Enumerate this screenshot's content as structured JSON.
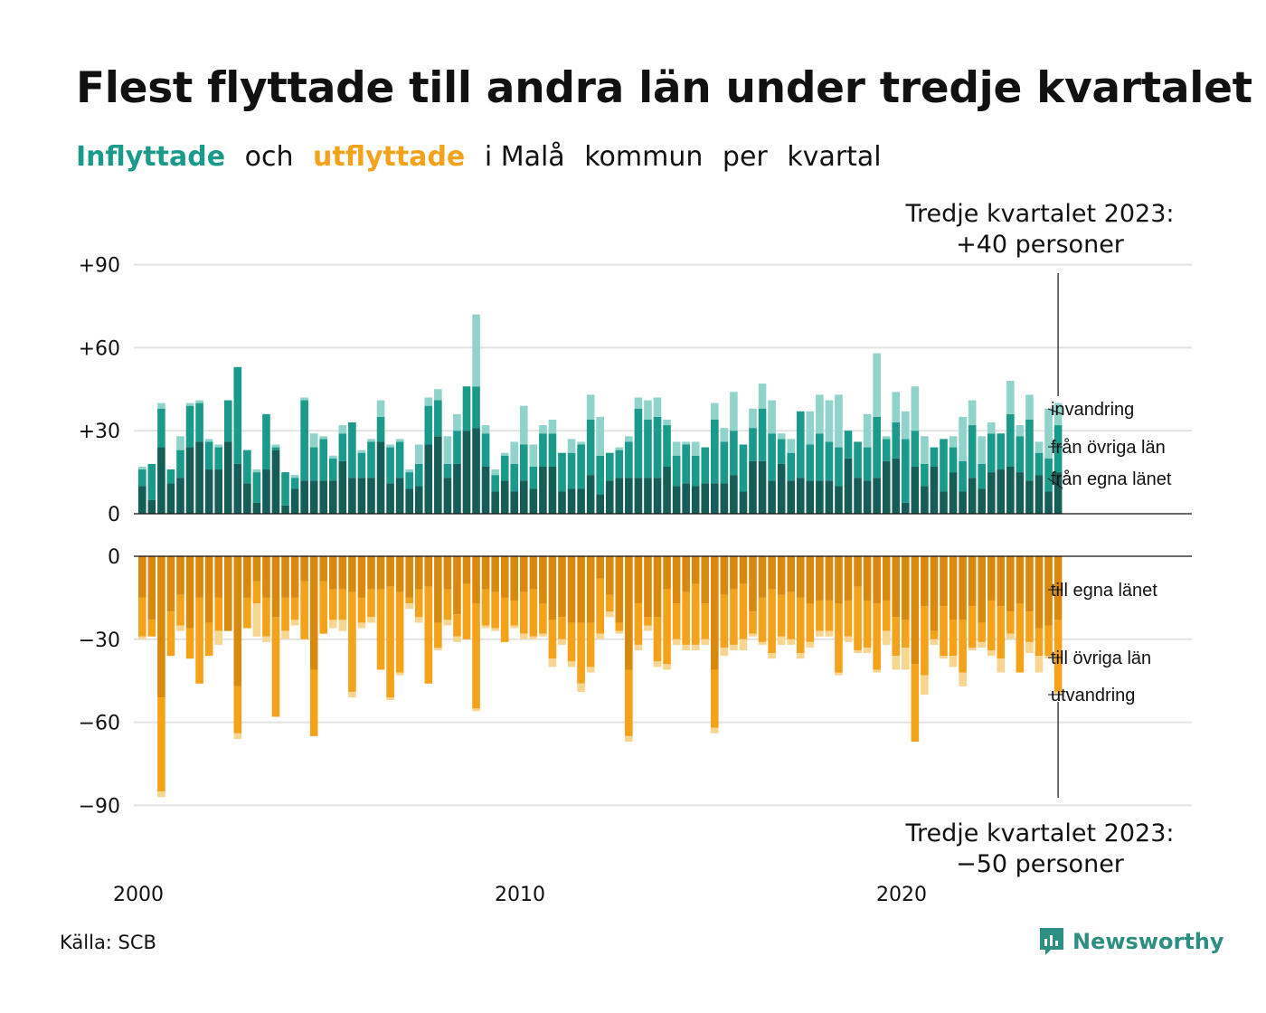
{
  "title": "Flest flyttade till andra län under tredje kvartalet",
  "subtitle": {
    "part1": "Inflyttade",
    "part2": "och",
    "part3": "utflyttade",
    "part4": "i Malå",
    "part5": "kommun",
    "part6": "per",
    "part7": "kvartal"
  },
  "annotation_top": {
    "line1": "Tredje kvartalet 2023:",
    "line2": "+40 personer"
  },
  "annotation_bottom": {
    "line1": "Tredje kvartalet 2023:",
    "line2": "−50 personer"
  },
  "source": "Källa: SCB",
  "logo": {
    "text": "Newsworthy",
    "icon": "newsworthy-bars-icon"
  },
  "colors": {
    "in_own": "#145e57",
    "in_other": "#1a9a8a",
    "in_immig": "#8fd3cb",
    "out_own": "#d98a0e",
    "out_other": "#f5a21b",
    "out_emig": "#f8d591",
    "grid": "#e2e2e2",
    "logo": "#2d8e82"
  },
  "chart_data": {
    "type": "bar",
    "stacked": true,
    "x_label_ticks": [
      "2000",
      "2010",
      "2020"
    ],
    "x_start_year": 2000,
    "periods": "quarterly, 2000 Q1 – 2023 Q3",
    "upper": {
      "yticks": [
        "+90",
        "+60",
        "+30",
        "0"
      ],
      "ylim": [
        0,
        90
      ],
      "series_labels": [
        "invandring",
        "från övriga län",
        "från egna länet"
      ],
      "total": [
        17,
        18,
        40,
        16,
        28,
        40,
        41,
        27,
        25,
        41,
        53,
        23,
        16,
        36,
        25,
        15,
        14,
        42,
        29,
        28,
        21,
        32,
        33,
        23,
        27,
        41,
        25,
        27,
        16,
        25,
        42,
        45,
        28,
        36,
        46,
        72,
        32,
        16,
        22,
        26,
        39,
        25,
        32,
        34,
        22,
        27,
        26,
        43,
        35,
        22,
        24,
        28,
        42,
        41,
        42,
        34,
        26,
        26,
        26,
        23,
        40,
        31,
        44,
        25,
        38,
        47,
        41,
        29,
        27,
        37,
        37,
        43,
        41,
        43,
        30,
        26,
        36,
        58,
        28,
        44,
        37,
        46,
        28,
        24,
        27,
        28,
        35,
        41,
        28,
        33,
        29,
        48,
        32,
        43,
        26,
        38,
        40
      ],
      "own_county": [
        10,
        5,
        24,
        11,
        13,
        24,
        26,
        16,
        16,
        26,
        18,
        11,
        4,
        16,
        23,
        3,
        9,
        12,
        12,
        12,
        12,
        19,
        13,
        13,
        13,
        26,
        11,
        13,
        9,
        10,
        25,
        28,
        13,
        18,
        30,
        31,
        17,
        8,
        12,
        8,
        12,
        9,
        17,
        17,
        8,
        9,
        9,
        14,
        7,
        12,
        13,
        13,
        13,
        13,
        13,
        17,
        10,
        11,
        10,
        11,
        11,
        11,
        14,
        8,
        19,
        19,
        12,
        18,
        12,
        13,
        12,
        12,
        12,
        10,
        20,
        13,
        12,
        13,
        19,
        20,
        4,
        17,
        10,
        17,
        8,
        15,
        8,
        13,
        9,
        15,
        16,
        17,
        15,
        12,
        14,
        8,
        15
      ],
      "other_counties": [
        6,
        13,
        14,
        5,
        10,
        15,
        14,
        10,
        8,
        15,
        35,
        12,
        11,
        20,
        1,
        12,
        4,
        29,
        12,
        15,
        8,
        10,
        20,
        9,
        13,
        9,
        13,
        13,
        6,
        8,
        14,
        13,
        5,
        12,
        16,
        15,
        12,
        6,
        9,
        10,
        13,
        8,
        12,
        12,
        14,
        13,
        16,
        20,
        14,
        10,
        10,
        13,
        25,
        21,
        22,
        15,
        11,
        14,
        11,
        13,
        23,
        15,
        16,
        17,
        12,
        19,
        17,
        9,
        10,
        24,
        13,
        17,
        14,
        14,
        10,
        13,
        12,
        22,
        8,
        13,
        23,
        13,
        8,
        7,
        19,
        9,
        11,
        19,
        9,
        14,
        13,
        19,
        13,
        22,
        8,
        12,
        17
      ]
    },
    "lower": {
      "yticks": [
        "0",
        "−30",
        "−60",
        "−90"
      ],
      "ylim": [
        -90,
        0
      ],
      "series_labels": [
        "till egna länet",
        "till övriga län",
        "utvandring"
      ],
      "total": [
        -30,
        -29,
        -87,
        -36,
        -27,
        -37,
        -46,
        -36,
        -32,
        -27,
        -66,
        -26,
        -29,
        -31,
        -58,
        -30,
        -25,
        -30,
        -65,
        -28,
        -26,
        -27,
        -51,
        -26,
        -24,
        -41,
        -52,
        -43,
        -19,
        -24,
        -46,
        -34,
        -25,
        -31,
        -30,
        -56,
        -26,
        -27,
        -31,
        -26,
        -30,
        -30,
        -29,
        -40,
        -32,
        -40,
        -49,
        -42,
        -30,
        -22,
        -28,
        -67,
        -34,
        -27,
        -40,
        -41,
        -32,
        -34,
        -34,
        -32,
        -64,
        -36,
        -34,
        -34,
        -29,
        -32,
        -37,
        -32,
        -32,
        -37,
        -33,
        -29,
        -29,
        -43,
        -31,
        -35,
        -35,
        -42,
        -32,
        -41,
        -41,
        -67,
        -50,
        -32,
        -37,
        -40,
        -47,
        -34,
        -33,
        -36,
        -42,
        -30,
        -42,
        -35,
        -42,
        -37,
        -50
      ],
      "own_county": [
        -15,
        -23,
        -51,
        -20,
        -14,
        -26,
        -15,
        -24,
        -15,
        -27,
        -47,
        -15,
        -9,
        -15,
        -22,
        -15,
        -15,
        -9,
        -41,
        -9,
        -12,
        -12,
        -13,
        -15,
        -12,
        -12,
        -11,
        -13,
        -15,
        -12,
        -11,
        -24,
        -12,
        -21,
        -10,
        -17,
        -12,
        -13,
        -15,
        -16,
        -13,
        -12,
        -17,
        -23,
        -22,
        -24,
        -24,
        -24,
        -8,
        -14,
        -24,
        -41,
        -17,
        -22,
        -22,
        -12,
        -17,
        -13,
        -10,
        -17,
        -41,
        -14,
        -12,
        -10,
        -20,
        -15,
        -12,
        -14,
        -13,
        -15,
        -17,
        -16,
        -16,
        -17,
        -16,
        -11,
        -16,
        -17,
        -16,
        -22,
        -23,
        -39,
        -18,
        -27,
        -18,
        -23,
        -23,
        -18,
        -24,
        -16,
        -18,
        -20,
        -17,
        -20,
        -26,
        -25,
        -23
      ],
      "other_counties": [
        -14,
        -6,
        -34,
        -16,
        -11,
        -11,
        -31,
        -12,
        -12,
        0,
        -17,
        -11,
        -8,
        -14,
        -36,
        -12,
        -8,
        -21,
        -24,
        -19,
        -11,
        -11,
        -36,
        -9,
        -10,
        -29,
        -40,
        -29,
        -2,
        -10,
        -35,
        -9,
        -11,
        -8,
        -20,
        -38,
        -13,
        -13,
        -16,
        -9,
        -15,
        -17,
        -11,
        -14,
        -8,
        -14,
        -22,
        -16,
        -20,
        -6,
        -3,
        -24,
        -15,
        -3,
        -16,
        -27,
        -13,
        -19,
        -22,
        -13,
        -21,
        -19,
        -20,
        -20,
        -8,
        -16,
        -23,
        -15,
        -17,
        -20,
        -14,
        -11,
        -11,
        -25,
        -13,
        -23,
        -17,
        -24,
        -11,
        -14,
        -10,
        -28,
        -25,
        -3,
        -18,
        -13,
        -19,
        -15,
        -7,
        -18,
        -19,
        -8,
        -25,
        -11,
        -10,
        -11,
        -26
      ]
    }
  }
}
